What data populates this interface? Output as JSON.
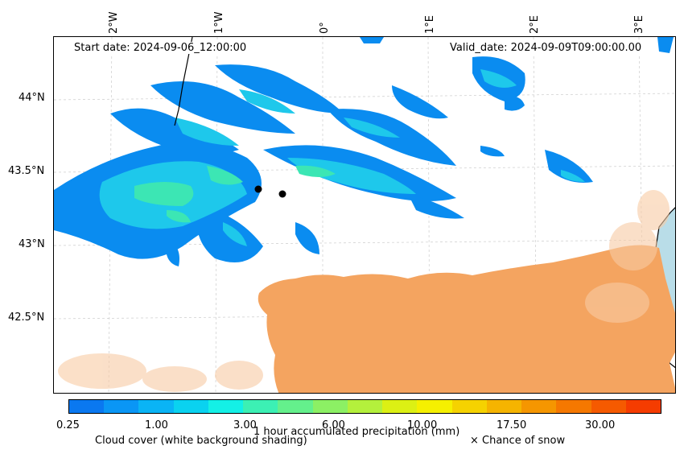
{
  "map": {
    "start_date": "Start date: 2024-09-06_12:00:00",
    "valid_date": "Valid_date: 2024-09-09T09:00:00.00",
    "lon_labels": [
      "2°W",
      "1°W",
      "0°",
      "1°E",
      "2°E",
      "3°E"
    ],
    "lat_labels": [
      "44°N",
      "43.5°N",
      "43°N",
      "42.5°N"
    ],
    "markers": [
      "city-point",
      "city-point"
    ]
  },
  "colorbar": {
    "title": "1 hour accumulated precipitation (mm)",
    "tick_labels": [
      "0.25",
      "1.00",
      "3.00",
      "6.00",
      "10.00",
      "17.50",
      "30.00"
    ],
    "colors": [
      "#0a78f0",
      "#0a96f5",
      "#0ab4f5",
      "#0ad2f0",
      "#14f0e6",
      "#3cf0b4",
      "#64f08c",
      "#8cf064",
      "#b4f03c",
      "#dcf014",
      "#f5f000",
      "#f5d200",
      "#f5b400",
      "#f59600",
      "#f57800",
      "#f55a00",
      "#f53c00"
    ]
  },
  "legend": {
    "cloud_cover": "Cloud cover (white background shading)",
    "snow": "× Chance of snow"
  },
  "colors": {
    "precip_low": "#0a8cf0",
    "precip_mid": "#1ed2e6",
    "precip_high": "#3cf0a0",
    "land_cover": "#f4a460",
    "sea": "#add8e6"
  }
}
